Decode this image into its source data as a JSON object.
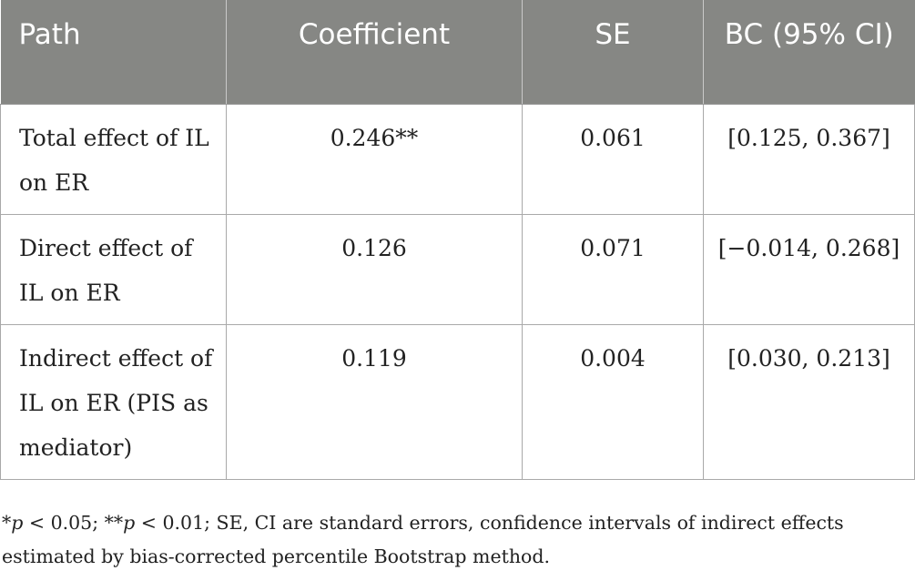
{
  "table": {
    "headers": [
      "Path",
      "Coefficient",
      "SE",
      "BC (95% CI)"
    ],
    "rows": [
      {
        "path": "Total effect of IL on ER",
        "coefficient": "0.246**",
        "se": "0.061",
        "ci": "[0.125, 0.367]"
      },
      {
        "path": "Direct effect of IL on ER",
        "coefficient": "0.126",
        "se": "0.071",
        "ci": "[−0.014, 0.268]"
      },
      {
        "path": "Indirect effect of IL on ER (PIS as mediator)",
        "coefficient": "0.119",
        "se": "0.004",
        "ci": "[0.030, 0.213]"
      }
    ]
  },
  "footnote": {
    "star1": "*",
    "p1": "p",
    "sig1": " < 0.05; **",
    "p2": "p",
    "sig2": " < 0.01; SE, CI are standard errors, confidence intervals of indirect effects estimated by bias-corrected percentile Bootstrap method."
  }
}
